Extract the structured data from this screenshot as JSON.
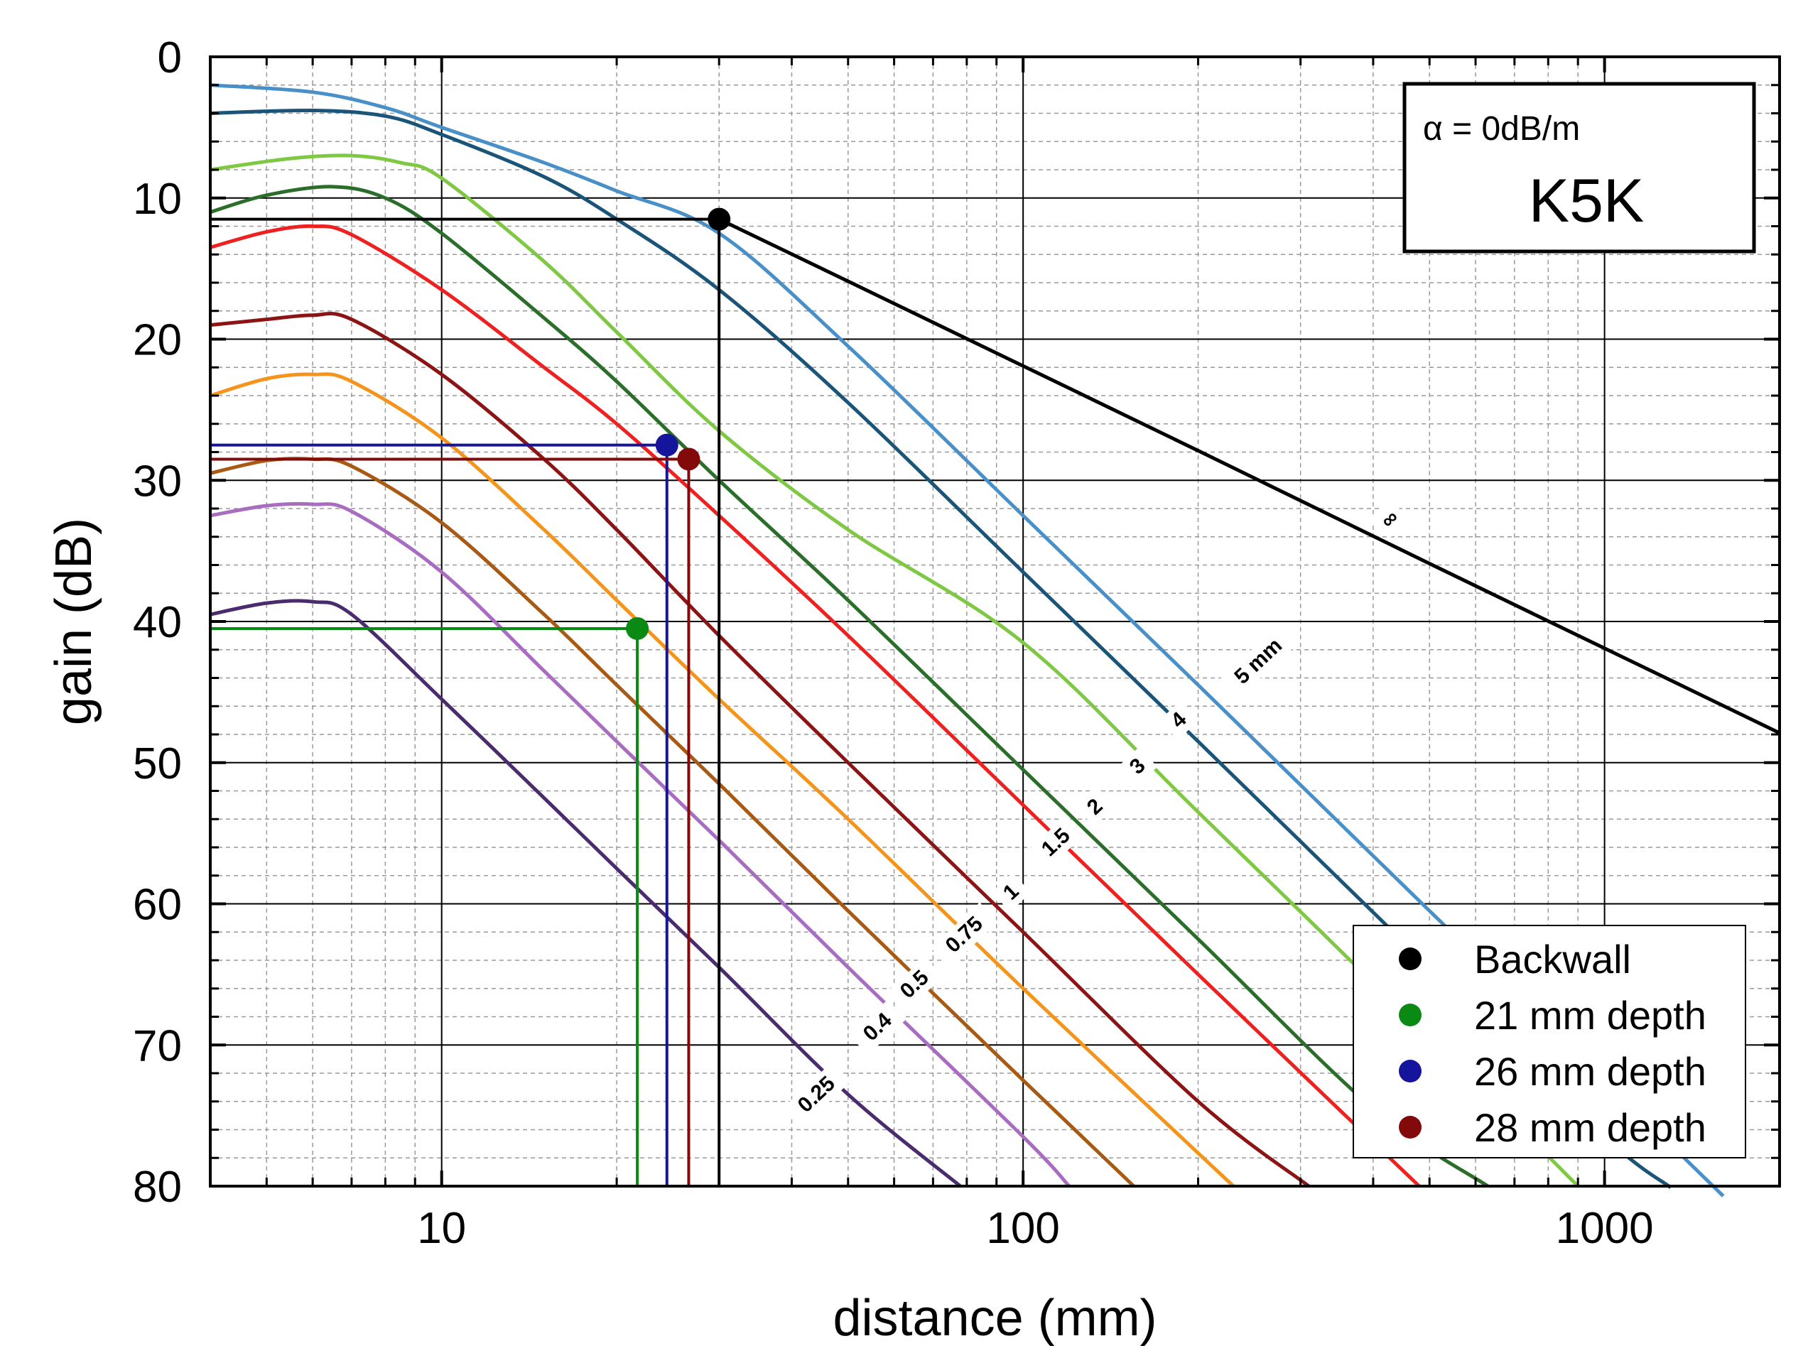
{
  "chart_data": {
    "type": "line",
    "xlabel": "distance (mm)",
    "ylabel": "gain (dB)",
    "xscale": "log",
    "xlim": [
      4,
      2000
    ],
    "ylim": [
      0,
      80
    ],
    "y_inverted": true,
    "x_ticks": [
      10,
      100,
      1000
    ],
    "x_tick_labels": [
      "10",
      "100",
      "1000"
    ],
    "y_ticks": [
      0,
      10,
      20,
      30,
      40,
      50,
      60,
      70,
      80
    ],
    "y_tick_labels": [
      "0",
      "10",
      "20",
      "30",
      "40",
      "50",
      "60",
      "70",
      "80"
    ],
    "grid": true,
    "series": [
      {
        "name": "∞",
        "color": "#000000",
        "x": [
          30,
          50,
          100,
          200,
          500,
          1000,
          2000
        ],
        "y": [
          11.5,
          15.9,
          21.9,
          27.9,
          35.9,
          41.9,
          47.9
        ]
      },
      {
        "name": "5 mm",
        "color": "#4a90c8",
        "x": [
          4,
          6,
          8,
          10,
          15,
          20,
          30,
          50,
          100,
          200,
          500,
          1000,
          1600
        ],
        "y": [
          2,
          2.5,
          3.6,
          5,
          7.5,
          9.5,
          12.5,
          20.5,
          32.5,
          44.5,
          60.5,
          72.5,
          80.7
        ]
      },
      {
        "name": "4",
        "color": "#1a5478",
        "x": [
          4,
          6,
          8,
          10,
          15,
          20,
          30,
          50,
          100,
          200,
          500,
          1000,
          1300
        ],
        "y": [
          4,
          3.8,
          4.2,
          5.5,
          8.5,
          11.5,
          16.5,
          24.5,
          36.5,
          48.5,
          64.5,
          76.5,
          80.1
        ]
      },
      {
        "name": "3",
        "color": "#7ec844",
        "x": [
          4,
          5.5,
          7,
          8.5,
          10,
          15,
          20,
          30,
          50,
          100,
          200,
          500,
          900
        ],
        "y": [
          8,
          7.2,
          7,
          7.5,
          8.6,
          14.5,
          19.5,
          26.5,
          33.5,
          41.5,
          53.5,
          69.5,
          80
        ]
      },
      {
        "name": "2",
        "color": "#2a6e2a",
        "x": [
          4,
          5,
          6.5,
          8,
          10,
          15,
          20,
          30,
          50,
          100,
          200,
          400,
          630
        ],
        "y": [
          11,
          9.8,
          9.2,
          10,
          12.5,
          18.5,
          23,
          30,
          38.5,
          50.5,
          62.5,
          74.5,
          80
        ]
      },
      {
        "name": "1.5",
        "color": "#ee2020",
        "x": [
          4,
          5,
          6,
          7,
          10,
          15,
          20,
          30,
          50,
          100,
          200,
          480
        ],
        "y": [
          13.5,
          12.4,
          12,
          12.6,
          16.5,
          22,
          26,
          32.5,
          41,
          53,
          65,
          80
        ]
      },
      {
        "name": "1",
        "color": "#8c1414",
        "x": [
          4,
          5,
          6,
          7,
          10,
          15,
          20,
          30,
          50,
          100,
          200,
          310
        ],
        "y": [
          19,
          18.6,
          18.3,
          18.6,
          22.5,
          28.5,
          33.5,
          41,
          50,
          62,
          74,
          80
        ]
      },
      {
        "name": "0.75",
        "color": "#f5941a",
        "x": [
          4,
          5,
          6,
          7,
          10,
          15,
          20,
          30,
          50,
          100,
          230
        ],
        "y": [
          24,
          22.8,
          22.5,
          23,
          27,
          33.5,
          38.5,
          45.5,
          54,
          66,
          80
        ]
      },
      {
        "name": "0.5",
        "color": "#a85a14",
        "x": [
          4,
          5,
          6,
          7,
          10,
          15,
          20,
          30,
          50,
          100,
          155
        ],
        "y": [
          29.5,
          28.6,
          28.5,
          29,
          33,
          39.5,
          44.5,
          51.5,
          60.5,
          72.5,
          80
        ]
      },
      {
        "name": "0.4",
        "color": "#a86cc0",
        "x": [
          4,
          5,
          6,
          7,
          10,
          15,
          20,
          30,
          50,
          100,
          120
        ],
        "y": [
          32.5,
          31.8,
          31.7,
          32.2,
          36.5,
          43.5,
          48.5,
          55.5,
          64.5,
          76.5,
          80
        ]
      },
      {
        "name": "0.25",
        "color": "#4a2c6e",
        "x": [
          4,
          5,
          6,
          7,
          10,
          15,
          20,
          30,
          50,
          78
        ],
        "y": [
          39.5,
          38.7,
          38.6,
          39.5,
          45.5,
          52.5,
          57.5,
          64.5,
          73.5,
          80
        ]
      }
    ],
    "markers": [
      {
        "name": "Backwall",
        "color": "#000000",
        "x": 30,
        "y": 11.5
      },
      {
        "name": "21 mm depth",
        "color": "#0a8a14",
        "x": 21.7,
        "y": 40.5
      },
      {
        "name": "26 mm depth",
        "color": "#14149c",
        "x": 24.4,
        "y": 27.5
      },
      {
        "name": "28 mm depth",
        "color": "#820a0a",
        "x": 26.6,
        "y": 28.5
      }
    ],
    "curve_labels": [
      {
        "text": "∞",
        "series": "∞"
      },
      {
        "text": "5  mm",
        "series": "5 mm"
      },
      {
        "text": "4",
        "series": "4"
      },
      {
        "text": "3",
        "series": "3"
      },
      {
        "text": "2",
        "series": "2"
      },
      {
        "text": "1.5",
        "series": "1.5"
      },
      {
        "text": "1",
        "series": "1"
      },
      {
        "text": "0.75",
        "series": "0.75"
      },
      {
        "text": "0.5",
        "series": "0.5"
      },
      {
        "text": "0.4",
        "series": "0.4"
      },
      {
        "text": "0.25",
        "series": "0.25"
      }
    ],
    "legend": {
      "position": "bottom-right",
      "entries": [
        "Backwall",
        "21 mm depth",
        "26 mm depth",
        "28 mm depth"
      ]
    },
    "annotation": {
      "alpha": "α = 0dB/m",
      "code": "K5K",
      "position": "top-right"
    }
  }
}
